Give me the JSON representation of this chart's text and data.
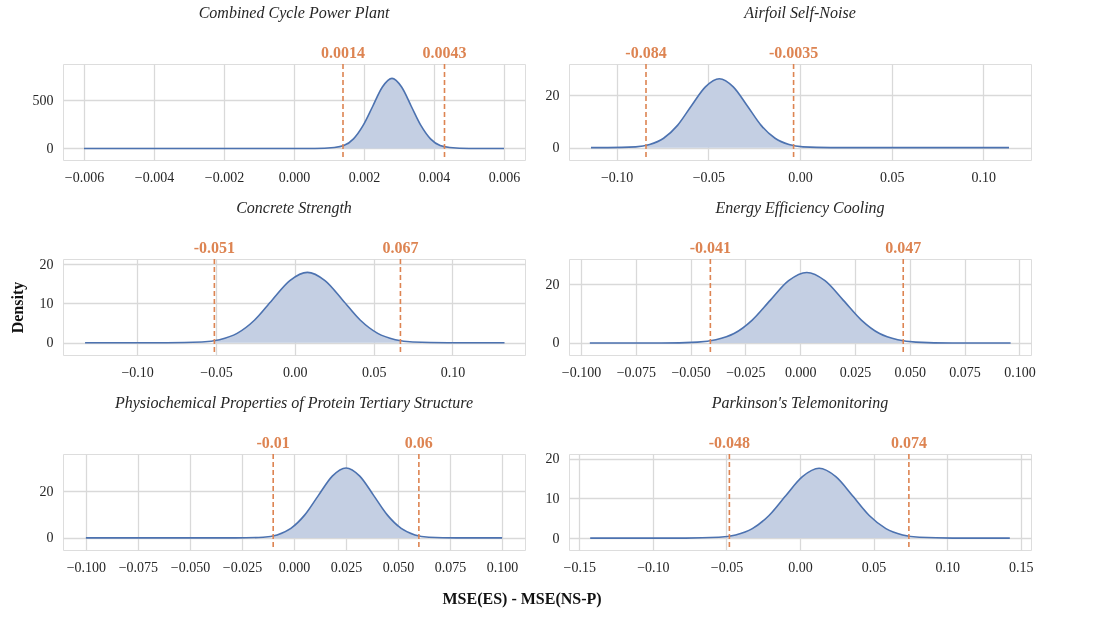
{
  "chart_data": [
    {
      "type": "line",
      "title": "Combined Cycle Power Plant",
      "grid": true,
      "xlim": [
        -0.0066,
        0.0066
      ],
      "ylim": [
        -120,
        880
      ],
      "xticks": [
        {
          "value": -0.006,
          "label": "−0.006"
        },
        {
          "value": -0.004,
          "label": "−0.004"
        },
        {
          "value": -0.002,
          "label": "−0.002"
        },
        {
          "value": 0,
          "label": "0.000"
        },
        {
          "value": 0.002,
          "label": "0.002"
        },
        {
          "value": 0.004,
          "label": "0.004"
        },
        {
          "value": 0.006,
          "label": "0.006"
        }
      ],
      "yticks": [
        0,
        500
      ],
      "series": [
        {
          "type": "area",
          "color": "#c4cfe3",
          "x": [
            0.0014,
            0.001425,
            0.0017,
            0.001975,
            0.00225,
            0.002525,
            0.0028,
            0.003075,
            0.00335,
            0.003625,
            0.0039,
            0.004175,
            0.0043
          ],
          "values": [
            30,
            30,
            100,
            240,
            440,
            640,
            730,
            640,
            440,
            240,
            100,
            30,
            20
          ]
        },
        {
          "type": "line",
          "color": "#4c72b0",
          "x": [
            -0.006,
            0.0006,
            0.00115,
            0.001425,
            0.0017,
            0.001975,
            0.00225,
            0.002525,
            0.0028,
            0.003075,
            0.00335,
            0.003625,
            0.0039,
            0.004175,
            0.00445,
            0.005,
            0.006
          ],
          "values": [
            0,
            0,
            10,
            30,
            100,
            240,
            440,
            640,
            730,
            640,
            440,
            240,
            100,
            30,
            10,
            0,
            0
          ]
        }
      ],
      "ref_lines": [
        {
          "axis": "x",
          "value": 0.0014,
          "label": "0.0014",
          "color": "#dd8452",
          "line_style": "dashed"
        },
        {
          "axis": "x",
          "value": 0.0043,
          "label": "0.0043",
          "color": "#dd8452",
          "line_style": "dashed"
        }
      ]
    },
    {
      "type": "line",
      "title": "Airfoil Self-Noise",
      "grid": true,
      "xlim": [
        -0.126,
        0.126
      ],
      "ylim": [
        -4.7,
        31.9
      ],
      "xticks": [
        {
          "value": -0.1,
          "label": "−0.10"
        },
        {
          "value": -0.05,
          "label": "−0.05"
        },
        {
          "value": 0,
          "label": "0.00"
        },
        {
          "value": 0.05,
          "label": "0.05"
        },
        {
          "value": 0.1,
          "label": "0.10"
        }
      ],
      "yticks": [
        0,
        20
      ],
      "series": [
        {
          "type": "area",
          "color": "#c4cfe3",
          "x": [
            -0.084,
            -0.082,
            -0.0744,
            -0.0668,
            -0.0592,
            -0.0516,
            -0.044,
            -0.0364,
            -0.0288,
            -0.0212,
            -0.0136,
            -0.006,
            -0.0035
          ],
          "values": [
            0.8,
            1.2,
            3.6,
            8.5,
            16.0,
            23.2,
            26.3,
            23.2,
            16.0,
            8.5,
            3.6,
            1.2,
            0.7
          ]
        },
        {
          "type": "line",
          "color": "#4c72b0",
          "x": [
            -0.114,
            -0.1048,
            -0.0896,
            -0.082,
            -0.0744,
            -0.0668,
            -0.0592,
            -0.0516,
            -0.044,
            -0.0364,
            -0.0288,
            -0.0212,
            -0.0136,
            -0.006,
            0.0016,
            0.0168,
            0.114
          ],
          "values": [
            0,
            0,
            0.3,
            1.2,
            3.6,
            8.5,
            16.0,
            23.2,
            26.3,
            23.2,
            16.0,
            8.5,
            3.6,
            1.2,
            0.3,
            0,
            0
          ]
        }
      ],
      "ref_lines": [
        {
          "axis": "x",
          "value": -0.084,
          "label": "-0.084",
          "color": "#dd8452",
          "line_style": "dashed"
        },
        {
          "axis": "x",
          "value": -0.0035,
          "label": "-0.0035",
          "color": "#dd8452",
          "line_style": "dashed"
        }
      ]
    },
    {
      "type": "line",
      "title": "Concrete Strength",
      "ylabel": "Density",
      "grid": true,
      "xlim": [
        -0.147,
        0.146
      ],
      "ylim": [
        -3.1,
        21.3
      ],
      "xticks": [
        {
          "value": -0.1,
          "label": "−0.10"
        },
        {
          "value": -0.05,
          "label": "−0.05"
        },
        {
          "value": 0,
          "label": "0.00"
        },
        {
          "value": 0.05,
          "label": "0.05"
        },
        {
          "value": 0.1,
          "label": "0.10"
        }
      ],
      "yticks": [
        0,
        10,
        20
      ],
      "series": [
        {
          "type": "area",
          "color": "#c4cfe3",
          "x": [
            -0.051,
            -0.04775,
            -0.0366,
            -0.02545,
            -0.0143,
            -0.00315,
            0.008,
            0.01915,
            0.0303,
            0.04145,
            0.0526,
            0.06375,
            0.067
          ],
          "values": [
            0.5,
            0.8,
            2.4,
            5.8,
            10.9,
            15.8,
            17.9,
            15.8,
            10.9,
            5.8,
            2.4,
            0.8,
            0.5
          ]
        },
        {
          "type": "line",
          "color": "#4c72b0",
          "x": [
            -0.133,
            -0.0812,
            -0.0589,
            -0.04775,
            -0.0366,
            -0.02545,
            -0.0143,
            -0.00315,
            0.008,
            0.01915,
            0.0303,
            0.04145,
            0.0526,
            0.06375,
            0.0749,
            0.0972,
            0.133
          ],
          "values": [
            0,
            0,
            0.2,
            0.8,
            2.4,
            5.8,
            10.9,
            15.8,
            17.9,
            15.8,
            10.9,
            5.8,
            2.4,
            0.8,
            0.2,
            0,
            0
          ]
        }
      ],
      "ref_lines": [
        {
          "axis": "x",
          "value": -0.051,
          "label": "-0.051",
          "color": "#dd8452",
          "line_style": "dashed"
        },
        {
          "axis": "x",
          "value": 0.067,
          "label": "0.067",
          "color": "#dd8452",
          "line_style": "dashed"
        }
      ]
    },
    {
      "type": "line",
      "title": "Energy Efficiency Cooling",
      "grid": true,
      "xlim": [
        -0.1055,
        0.1053
      ],
      "ylim": [
        -4.1,
        28.6
      ],
      "xticks": [
        {
          "value": -0.1,
          "label": "−0.100"
        },
        {
          "value": -0.075,
          "label": "−0.075"
        },
        {
          "value": -0.05,
          "label": "−0.050"
        },
        {
          "value": -0.025,
          "label": "−0.025"
        },
        {
          "value": 0,
          "label": "0.000"
        },
        {
          "value": 0.025,
          "label": "0.025"
        },
        {
          "value": 0.05,
          "label": "0.050"
        },
        {
          "value": 0.075,
          "label": "0.075"
        },
        {
          "value": 0.1,
          "label": "0.100"
        }
      ],
      "yticks": [
        0,
        20
      ],
      "series": [
        {
          "type": "area",
          "color": "#c4cfe3",
          "x": [
            -0.041,
            -0.0385,
            -0.0302,
            -0.0219,
            -0.0136,
            -0.0053,
            0.003,
            0.0113,
            0.0196,
            0.0279,
            0.0362,
            0.0445,
            0.047
          ],
          "values": [
            0.7,
            1.1,
            3.2,
            7.8,
            14.6,
            21.2,
            24.0,
            21.2,
            14.6,
            7.8,
            3.2,
            1.1,
            0.7
          ]
        },
        {
          "type": "line",
          "color": "#4c72b0",
          "x": [
            -0.096,
            -0.0634,
            -0.0468,
            -0.0385,
            -0.0302,
            -0.0219,
            -0.0136,
            -0.0053,
            0.003,
            0.0113,
            0.0196,
            0.0279,
            0.0362,
            0.0445,
            0.0528,
            0.0694,
            0.096
          ],
          "values": [
            0,
            0,
            0.3,
            1.1,
            3.2,
            7.8,
            14.6,
            21.2,
            24.0,
            21.2,
            14.6,
            7.8,
            3.2,
            1.1,
            0.3,
            0,
            0
          ]
        }
      ],
      "ref_lines": [
        {
          "axis": "x",
          "value": -0.041,
          "label": "-0.041",
          "color": "#dd8452",
          "line_style": "dashed"
        },
        {
          "axis": "x",
          "value": 0.047,
          "label": "0.047",
          "color": "#dd8452",
          "line_style": "dashed"
        }
      ]
    },
    {
      "type": "line",
      "title": "Physiochemical Properties of Protein Tertiary Structure",
      "xlabel": "MSE(ES) - MSE(NS-P)",
      "grid": true,
      "xlim": [
        -0.111,
        0.111
      ],
      "ylim": [
        -5.2,
        36.1
      ],
      "xticks": [
        {
          "value": -0.1,
          "label": "−0.100"
        },
        {
          "value": -0.075,
          "label": "−0.075"
        },
        {
          "value": -0.05,
          "label": "−0.050"
        },
        {
          "value": -0.025,
          "label": "−0.025"
        },
        {
          "value": 0,
          "label": "0.000"
        },
        {
          "value": 0.025,
          "label": "0.025"
        },
        {
          "value": 0.05,
          "label": "0.050"
        },
        {
          "value": 0.075,
          "label": "0.075"
        },
        {
          "value": 0.1,
          "label": "0.100"
        }
      ],
      "yticks": [
        0,
        20
      ],
      "series": [
        {
          "type": "area",
          "color": "#c4cfe3",
          "x": [
            -0.01,
            -0.0081,
            -0.0015,
            0.0051,
            0.01175,
            0.0184,
            0.025,
            0.0316,
            0.03825,
            0.0449,
            0.0515,
            0.0581,
            0.06
          ],
          "values": [
            0.9,
            1.3,
            4.1,
            9.8,
            18.3,
            26.6,
            30.1,
            26.6,
            18.3,
            9.8,
            4.1,
            1.3,
            0.9
          ]
        },
        {
          "type": "line",
          "color": "#4c72b0",
          "x": [
            -0.1,
            -0.028,
            -0.0148,
            -0.0081,
            -0.0015,
            0.0051,
            0.01175,
            0.0184,
            0.025,
            0.0316,
            0.03825,
            0.0449,
            0.0515,
            0.0581,
            0.0648,
            0.078,
            0.1
          ],
          "values": [
            0,
            0,
            0.3,
            1.3,
            4.1,
            9.8,
            18.3,
            26.6,
            30.1,
            26.6,
            18.3,
            9.8,
            4.1,
            1.3,
            0.3,
            0,
            0
          ]
        }
      ],
      "ref_lines": [
        {
          "axis": "x",
          "value": -0.01,
          "label": "-0.01",
          "color": "#dd8452",
          "line_style": "dashed"
        },
        {
          "axis": "x",
          "value": 0.06,
          "label": "0.06",
          "color": "#dd8452",
          "line_style": "dashed"
        }
      ]
    },
    {
      "type": "line",
      "title": "Parkinson's Telemonitoring",
      "grid": true,
      "xlim": [
        -0.157,
        0.157
      ],
      "ylim": [
        -3.0,
        21.2
      ],
      "xticks": [
        {
          "value": -0.15,
          "label": "−0.15"
        },
        {
          "value": -0.1,
          "label": "−0.10"
        },
        {
          "value": -0.05,
          "label": "−0.05"
        },
        {
          "value": 0,
          "label": "0.00"
        },
        {
          "value": 0.05,
          "label": "0.05"
        },
        {
          "value": 0.1,
          "label": "0.10"
        },
        {
          "value": 0.15,
          "label": "0.15"
        }
      ],
      "yticks": [
        0,
        10,
        20
      ],
      "series": [
        {
          "type": "area",
          "color": "#c4cfe3",
          "x": [
            -0.048,
            -0.04375,
            -0.0324,
            -0.02105,
            -0.0097,
            0.00165,
            0.013,
            0.02435,
            0.0357,
            0.04705,
            0.0584,
            0.06975,
            0.074
          ],
          "values": [
            0.6,
            0.8,
            2.4,
            5.7,
            10.7,
            15.5,
            17.6,
            15.5,
            10.7,
            5.7,
            2.4,
            0.8,
            0.6
          ]
        },
        {
          "type": "line",
          "color": "#4c72b0",
          "x": [
            -0.1426,
            -0.0778,
            -0.0551,
            -0.04375,
            -0.0324,
            -0.02105,
            -0.0097,
            0.00165,
            0.013,
            0.02435,
            0.0357,
            0.04705,
            0.0584,
            0.06975,
            0.0811,
            0.1038,
            0.1426
          ],
          "values": [
            0,
            0,
            0.2,
            0.8,
            2.4,
            5.7,
            10.7,
            15.5,
            17.6,
            15.5,
            10.7,
            5.7,
            2.4,
            0.8,
            0.2,
            0,
            0
          ]
        }
      ],
      "ref_lines": [
        {
          "axis": "x",
          "value": -0.048,
          "label": "-0.048",
          "color": "#dd8452",
          "line_style": "dashed"
        },
        {
          "axis": "x",
          "value": 0.074,
          "label": "0.074",
          "color": "#dd8452",
          "line_style": "dashed"
        }
      ]
    }
  ]
}
